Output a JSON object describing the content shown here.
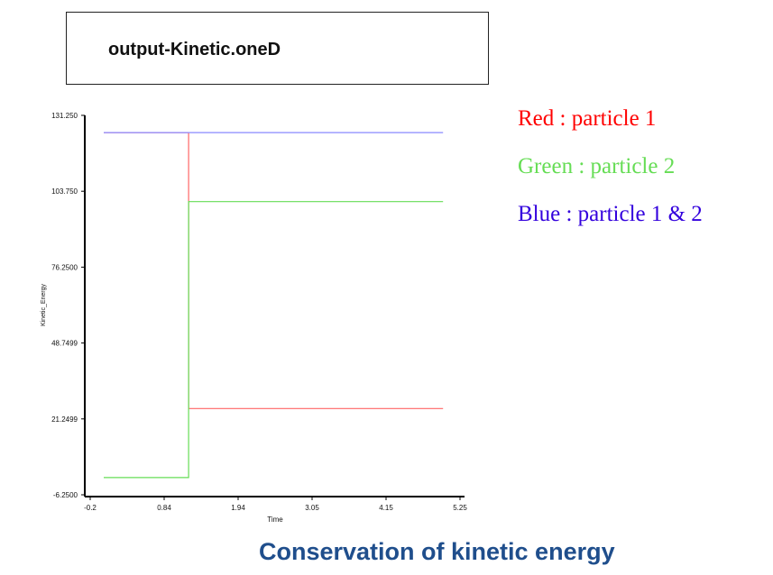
{
  "header": {
    "title": "output-Kinetic.oneD"
  },
  "legend": {
    "items": [
      {
        "label": "Red : particle 1",
        "color": "#ff0000"
      },
      {
        "label": "Green : particle 2",
        "color": "#66dd55"
      },
      {
        "label": "Blue : particle 1 & 2",
        "color": "#3300dd"
      }
    ]
  },
  "caption": "Conservation of kinetic energy",
  "chart_data": {
    "type": "line",
    "title": "",
    "xlabel": "Time",
    "ylabel": "Kinetic_Energy",
    "xlim": [
      -0.2,
      5.25
    ],
    "ylim": [
      -6.25,
      131.25
    ],
    "x_ticks": [
      "-0.2",
      "0.84",
      "1.94",
      "3.05",
      "4.15",
      "5.25"
    ],
    "y_ticks": [
      "131.250",
      "103.750",
      "76.2500",
      "48.7499",
      "21.2499",
      "-6.2500"
    ],
    "grid": false,
    "series": [
      {
        "name": "particle 1",
        "color": "#ff6666",
        "x": [
          0.0,
          1.25,
          1.25,
          5.0
        ],
        "y": [
          125.0,
          125.0,
          25.0,
          25.0
        ]
      },
      {
        "name": "particle 2",
        "color": "#66dd55",
        "x": [
          0.0,
          1.25,
          1.25,
          5.0
        ],
        "y": [
          0.0,
          0.0,
          100.0,
          100.0
        ]
      },
      {
        "name": "particle 1 & 2",
        "color": "#8888ff",
        "x": [
          0.0,
          5.0
        ],
        "y": [
          125.0,
          125.0
        ]
      }
    ]
  }
}
